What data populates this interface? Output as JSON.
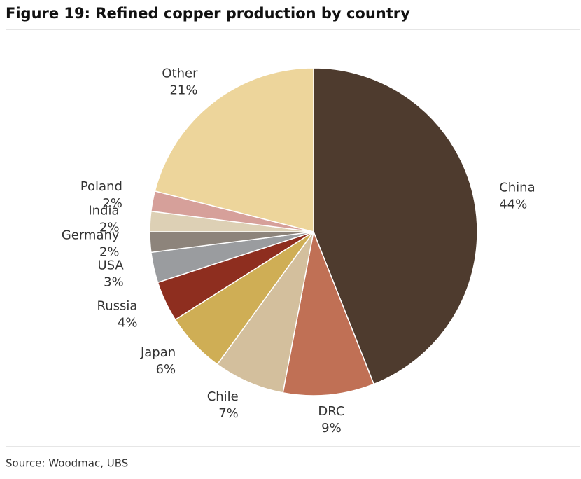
{
  "chart_data": {
    "type": "pie",
    "title": "Figure 19: Refined copper production by country",
    "source": "Source: Woodmac, UBS",
    "categories": [
      "China",
      "DRC",
      "Chile",
      "Japan",
      "Russia",
      "USA",
      "Germany",
      "India",
      "Poland",
      "Other"
    ],
    "values": [
      44,
      9,
      7,
      6,
      4,
      3,
      2,
      2,
      2,
      21
    ],
    "value_labels": [
      "44%",
      "9%",
      "7%",
      "6%",
      "4%",
      "3%",
      "2%",
      "2%",
      "2%",
      "21%"
    ],
    "colors": [
      "#4e3b2e",
      "#c07055",
      "#d3bf9d",
      "#cfae55",
      "#8e2e1f",
      "#9a9c9f",
      "#8d847b",
      "#ddd0b5",
      "#d6a09a",
      "#edd59b"
    ]
  }
}
